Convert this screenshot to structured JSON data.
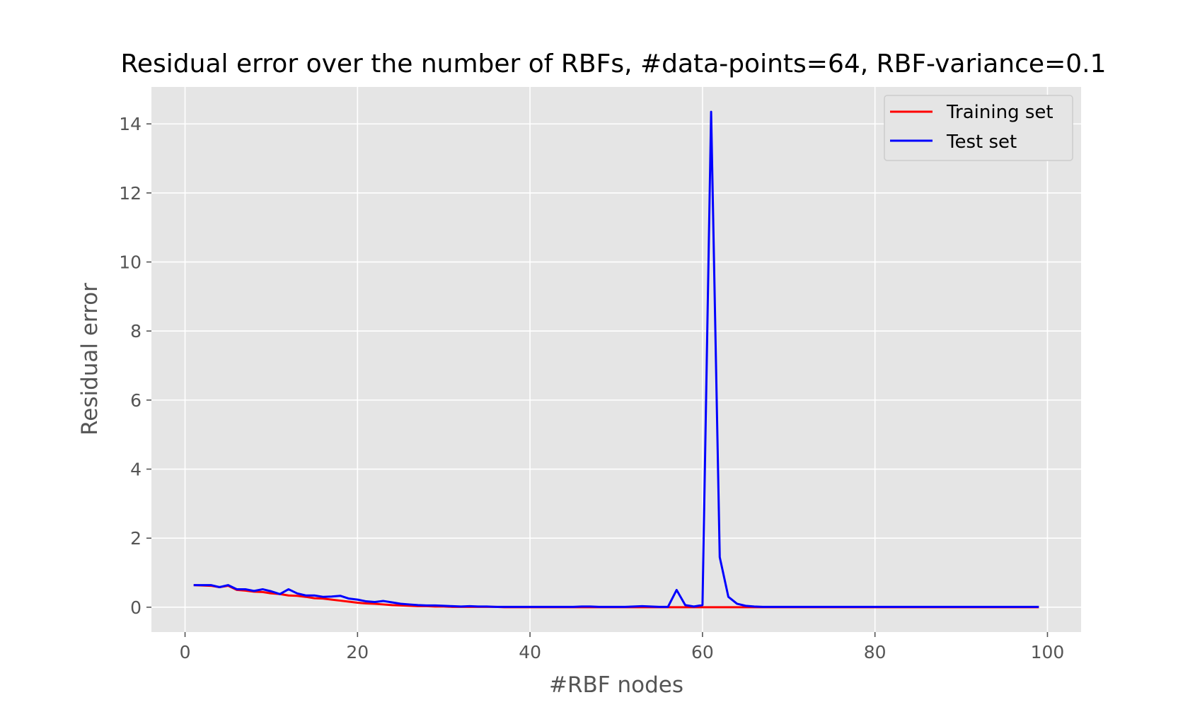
{
  "chart_data": {
    "type": "line",
    "title": "Residual error over the number of RBFs, #data-points=64, RBF-variance=0.1",
    "xlabel": "#RBF nodes",
    "ylabel": "Residual error",
    "xlim": [
      -3.9,
      103.9
    ],
    "ylim": [
      -0.72,
      15.07
    ],
    "xticks": [
      0,
      20,
      40,
      60,
      80,
      100
    ],
    "yticks": [
      0,
      2,
      4,
      6,
      8,
      10,
      12,
      14
    ],
    "grid": true,
    "legend_position": "top-right",
    "background": "#e5e5e5",
    "grid_color": "#ffffff",
    "x": [
      1,
      2,
      3,
      4,
      5,
      6,
      7,
      8,
      9,
      10,
      11,
      12,
      13,
      14,
      15,
      16,
      17,
      18,
      19,
      20,
      21,
      22,
      23,
      24,
      25,
      26,
      27,
      28,
      29,
      30,
      31,
      32,
      33,
      34,
      35,
      36,
      37,
      38,
      39,
      40,
      41,
      42,
      43,
      44,
      45,
      46,
      47,
      48,
      49,
      50,
      51,
      52,
      53,
      54,
      55,
      56,
      57,
      58,
      59,
      60,
      61,
      62,
      63,
      64,
      65,
      66,
      67,
      68,
      69,
      70,
      71,
      72,
      73,
      74,
      75,
      76,
      77,
      78,
      79,
      80,
      81,
      82,
      83,
      84,
      85,
      86,
      87,
      88,
      89,
      90,
      91,
      92,
      93,
      94,
      95,
      96,
      97,
      98,
      99
    ],
    "series": [
      {
        "name": "Training set",
        "color": "#ff0000",
        "values": [
          0.64,
          0.63,
          0.62,
          0.58,
          0.62,
          0.5,
          0.48,
          0.45,
          0.44,
          0.4,
          0.38,
          0.34,
          0.33,
          0.3,
          0.26,
          0.25,
          0.22,
          0.19,
          0.16,
          0.13,
          0.11,
          0.1,
          0.08,
          0.06,
          0.05,
          0.04,
          0.03,
          0.03,
          0.02,
          0.02,
          0.01,
          0.01,
          0.01,
          0.01,
          0.01,
          0.01,
          0.0,
          0.0,
          0.0,
          0.0,
          0.0,
          0.0,
          0.0,
          0.0,
          0.0,
          0.0,
          0.0,
          0.0,
          0.0,
          0.0,
          0.0,
          0.0,
          0.0,
          0.0,
          0.0,
          0.0,
          0.0,
          0.0,
          0.0,
          0.0,
          0.0,
          0.0,
          0.0,
          0.0,
          0.0,
          0.0,
          0.0,
          0.0,
          0.0,
          0.0,
          0.0,
          0.0,
          0.0,
          0.0,
          0.0,
          0.0,
          0.0,
          0.0,
          0.0,
          0.0,
          0.0,
          0.0,
          0.0,
          0.0,
          0.0,
          0.0,
          0.0,
          0.0,
          0.0,
          0.0,
          0.0,
          0.0,
          0.0,
          0.0,
          0.0,
          0.0,
          0.0,
          0.0,
          0.0
        ]
      },
      {
        "name": "Test set",
        "color": "#0000ff",
        "values": [
          0.64,
          0.64,
          0.64,
          0.58,
          0.64,
          0.52,
          0.52,
          0.47,
          0.52,
          0.46,
          0.38,
          0.52,
          0.4,
          0.34,
          0.34,
          0.3,
          0.31,
          0.33,
          0.25,
          0.22,
          0.17,
          0.15,
          0.18,
          0.14,
          0.1,
          0.08,
          0.06,
          0.05,
          0.05,
          0.04,
          0.03,
          0.02,
          0.03,
          0.02,
          0.02,
          0.01,
          0.01,
          0.01,
          0.01,
          0.01,
          0.01,
          0.01,
          0.01,
          0.01,
          0.01,
          0.02,
          0.02,
          0.01,
          0.01,
          0.01,
          0.01,
          0.02,
          0.03,
          0.02,
          0.01,
          0.01,
          0.5,
          0.06,
          0.02,
          0.06,
          14.35,
          1.45,
          0.3,
          0.1,
          0.04,
          0.02,
          0.01,
          0.01,
          0.01,
          0.01,
          0.01,
          0.01,
          0.01,
          0.01,
          0.01,
          0.01,
          0.01,
          0.01,
          0.01,
          0.01,
          0.01,
          0.01,
          0.01,
          0.01,
          0.01,
          0.01,
          0.01,
          0.01,
          0.01,
          0.01,
          0.01,
          0.01,
          0.01,
          0.01,
          0.01,
          0.01,
          0.01,
          0.01,
          0.01
        ]
      }
    ]
  }
}
